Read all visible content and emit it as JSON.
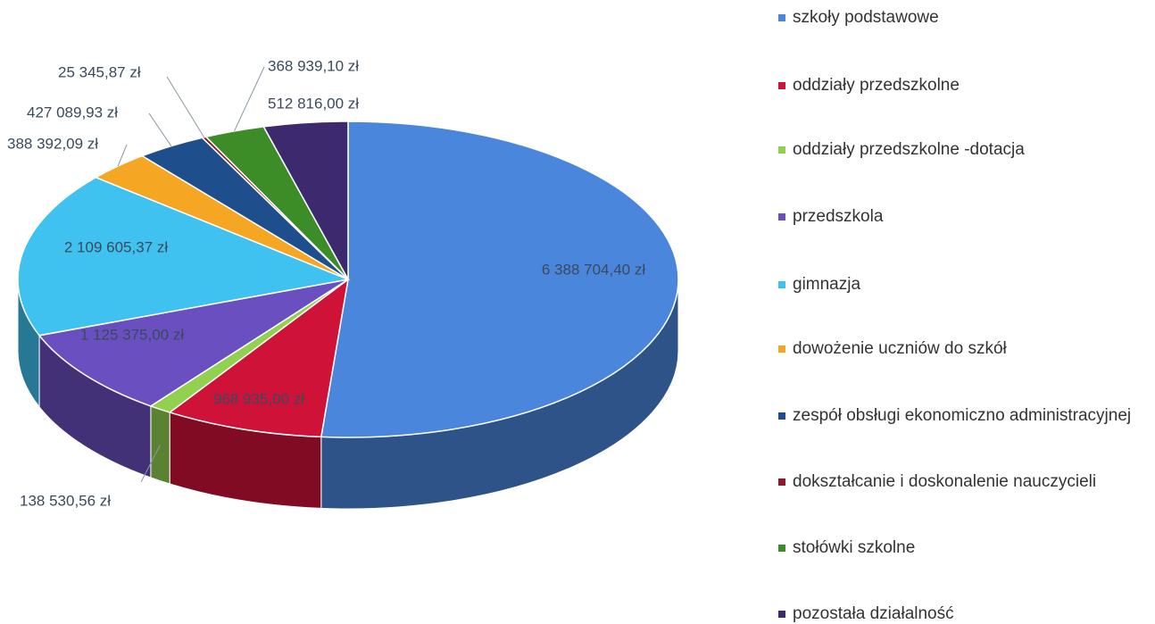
{
  "chart_data": {
    "type": "pie3d",
    "categories": [
      "szkoły podstawowe",
      "oddziały przedszkolne",
      "oddziały przedszkolne -dotacja",
      "przedszkola",
      "gimnazja",
      "dowożenie uczniów do szkół",
      "zespół obsługi ekonomiczno administracyjnej",
      "dokształcanie i doskonalenie nauczycieli",
      "stołówki szkolne",
      "pozostała działalność"
    ],
    "values": [
      6388704.4,
      968935.0,
      138530.56,
      1125375.0,
      2109605.37,
      388392.09,
      427089.93,
      25345.87,
      368939.1,
      512816.0
    ],
    "value_labels": [
      "6 388 704,40 zł",
      "968 935,00 zł",
      "138 530,56 zł",
      "1 125 375,00 zł",
      "2 109 605,37 zł",
      "388 392,09 zł",
      "427 089,93 zł",
      "25 345,87 zł",
      "368 939,10 zł",
      "512 816,00 zł"
    ],
    "colors": [
      "#4a86dc",
      "#cf1238",
      "#92d050",
      "#6a4fc0",
      "#3fc2f0",
      "#f5a623",
      "#1f4e8c",
      "#8b1a2b",
      "#3c8c28",
      "#3d2a6e"
    ],
    "legend": "right"
  }
}
